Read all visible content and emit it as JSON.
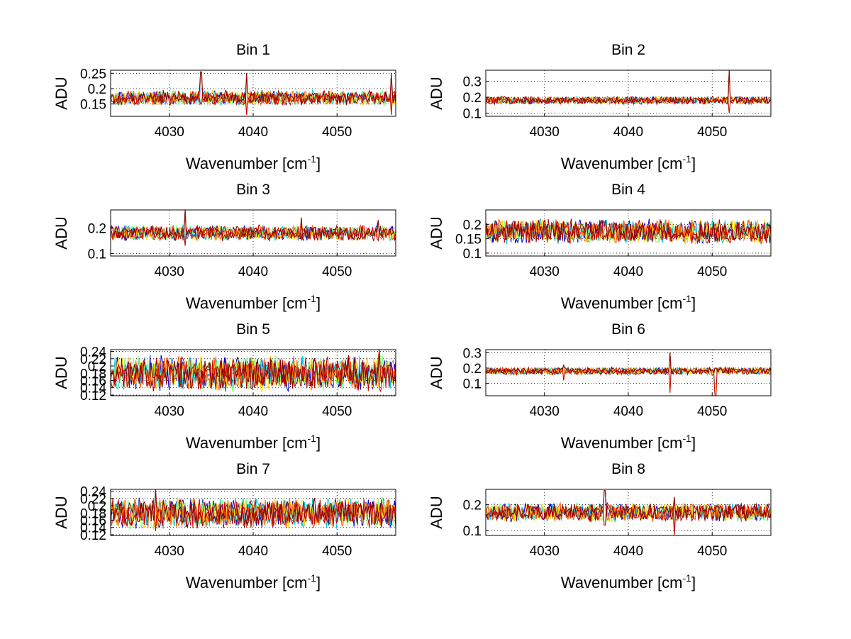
{
  "chart_data": [
    {
      "type": "line",
      "title": "Bin 1",
      "xlabel": "Wavenumber [cm",
      "xlabel_sup": "-1",
      "xlabel_end": "]",
      "ylabel": "ADU",
      "xlim": [
        4023,
        4057
      ],
      "ylim": [
        0.11,
        0.26
      ],
      "xticks": [
        4030,
        4040,
        4050
      ],
      "xtick_labels": [
        "4030",
        "4040",
        "4050"
      ],
      "yticks": [
        0.15,
        0.2,
        0.25
      ],
      "ytick_labels": [
        "0.15",
        "0.2",
        "0.25"
      ],
      "grid": "dotted",
      "series_count": 6,
      "baseline": 0.17,
      "noise_amplitude": 0.02,
      "spikes": [
        {
          "x": 4033.8,
          "up": 0.255,
          "down": 0.15
        },
        {
          "x": 4039.2,
          "up": 0.25,
          "down": 0.115
        },
        {
          "x": 4056.5,
          "up": 0.25,
          "down": 0.115
        }
      ]
    },
    {
      "type": "line",
      "title": "Bin 2",
      "xlabel": "Wavenumber [cm",
      "xlabel_sup": "-1",
      "xlabel_end": "]",
      "ylabel": "ADU",
      "xlim": [
        4023,
        4057
      ],
      "ylim": [
        0.08,
        0.37
      ],
      "xticks": [
        4030,
        4040,
        4050
      ],
      "xtick_labels": [
        "4030",
        "4040",
        "4050"
      ],
      "yticks": [
        0.1,
        0.2,
        0.3
      ],
      "ytick_labels": [
        "0.1",
        "0.2",
        "0.3"
      ],
      "grid": "dotted",
      "series_count": 6,
      "baseline": 0.18,
      "noise_amplitude": 0.02,
      "spikes": [
        {
          "x": 4052.0,
          "up": 0.37,
          "down": 0.1
        }
      ]
    },
    {
      "type": "line",
      "title": "Bin 3",
      "xlabel": "Wavenumber [cm",
      "xlabel_sup": "-1",
      "xlabel_end": "]",
      "ylabel": "ADU",
      "xlim": [
        4023,
        4057
      ],
      "ylim": [
        0.09,
        0.27
      ],
      "xticks": [
        4030,
        4040,
        4050
      ],
      "xtick_labels": [
        "4030",
        "4040",
        "4050"
      ],
      "yticks": [
        0.1,
        0.2
      ],
      "ytick_labels": [
        "0.1",
        "0.2"
      ],
      "grid": "dotted",
      "series_count": 6,
      "baseline": 0.18,
      "noise_amplitude": 0.025,
      "spikes": [
        {
          "x": 4031.9,
          "up": 0.27,
          "down": 0.13
        },
        {
          "x": 4045.8,
          "up": 0.24,
          "down": 0.15
        },
        {
          "x": 4054.9,
          "up": 0.23,
          "down": 0.15
        }
      ]
    },
    {
      "type": "line",
      "title": "Bin 4",
      "xlabel": "Wavenumber [cm",
      "xlabel_sup": "-1",
      "xlabel_end": "]",
      "ylabel": "ADU",
      "xlim": [
        4023,
        4057
      ],
      "ylim": [
        0.09,
        0.25
      ],
      "xticks": [
        4030,
        4040,
        4050
      ],
      "xtick_labels": [
        "4030",
        "4040",
        "4050"
      ],
      "yticks": [
        0.1,
        0.15,
        0.2
      ],
      "ytick_labels": [
        "0.1",
        "0.15",
        "0.2"
      ],
      "grid": "dotted",
      "series_count": 6,
      "baseline": 0.175,
      "noise_amplitude": 0.035,
      "spikes": []
    },
    {
      "type": "line",
      "title": "Bin 5",
      "xlabel": "Wavenumber [cm",
      "xlabel_sup": "-1",
      "xlabel_end": "]",
      "ylabel": "ADU",
      "xlim": [
        4023,
        4057
      ],
      "ylim": [
        0.118,
        0.245
      ],
      "xticks": [
        4030,
        4040,
        4050
      ],
      "xtick_labels": [
        "4030",
        "4040",
        "4050"
      ],
      "yticks": [
        0.12,
        0.14,
        0.16,
        0.18,
        0.2,
        0.22,
        0.24
      ],
      "ytick_labels": [
        "0.12",
        "0.14",
        "0.16",
        "0.18",
        "0.2",
        "0.22",
        "0.24"
      ],
      "grid": "dotted",
      "series_count": 6,
      "baseline": 0.18,
      "noise_amplitude": 0.04,
      "spikes": [
        {
          "x": 4055.0,
          "up": 0.245,
          "down": 0.14
        }
      ]
    },
    {
      "type": "line",
      "title": "Bin 6",
      "xlabel": "Wavenumber [cm",
      "xlabel_sup": "-1",
      "xlabel_end": "]",
      "ylabel": "ADU",
      "xlim": [
        4023,
        4057
      ],
      "ylim": [
        0.02,
        0.32
      ],
      "xticks": [
        4030,
        4040,
        4050
      ],
      "xtick_labels": [
        "4030",
        "4040",
        "4050"
      ],
      "yticks": [
        0.1,
        0.2,
        0.3
      ],
      "ytick_labels": [
        "0.1",
        "0.2",
        "0.3"
      ],
      "grid": "dotted",
      "series_count": 6,
      "baseline": 0.18,
      "noise_amplitude": 0.02,
      "spikes": [
        {
          "x": 4032.3,
          "up": 0.22,
          "down": 0.12
        },
        {
          "x": 4045.0,
          "up": 0.3,
          "down": 0.04
        },
        {
          "x": 4050.4,
          "up": 0.2,
          "down": 0.02
        }
      ]
    },
    {
      "type": "line",
      "title": "Bin 7",
      "xlabel": "Wavenumber [cm",
      "xlabel_sup": "-1",
      "xlabel_end": "]",
      "ylabel": "ADU",
      "xlim": [
        4023,
        4057
      ],
      "ylim": [
        0.118,
        0.245
      ],
      "xticks": [
        4030,
        4040,
        4050
      ],
      "xtick_labels": [
        "4030",
        "4040",
        "4050"
      ],
      "yticks": [
        0.12,
        0.14,
        0.16,
        0.18,
        0.2,
        0.22,
        0.24
      ],
      "ytick_labels": [
        "0.12",
        "0.14",
        "0.16",
        "0.18",
        "0.2",
        "0.22",
        "0.24"
      ],
      "grid": "dotted",
      "series_count": 6,
      "baseline": 0.18,
      "noise_amplitude": 0.035,
      "spikes": [
        {
          "x": 4028.4,
          "up": 0.245,
          "down": 0.13
        }
      ]
    },
    {
      "type": "line",
      "title": "Bin 8",
      "xlabel": "Wavenumber [cm",
      "xlabel_sup": "-1",
      "xlabel_end": "]",
      "ylabel": "ADU",
      "xlim": [
        4023,
        4057
      ],
      "ylim": [
        0.08,
        0.26
      ],
      "xticks": [
        4030,
        4040,
        4050
      ],
      "xtick_labels": [
        "4030",
        "4040",
        "4050"
      ],
      "yticks": [
        0.1,
        0.2
      ],
      "ytick_labels": [
        "0.1",
        "0.2"
      ],
      "grid": "dotted",
      "series_count": 6,
      "baseline": 0.17,
      "noise_amplitude": 0.03,
      "spikes": [
        {
          "x": 4037.2,
          "up": 0.255,
          "down": 0.12
        },
        {
          "x": 4045.5,
          "up": 0.23,
          "down": 0.08
        }
      ]
    }
  ],
  "series_colors": [
    "#0000c8",
    "#00c8e6",
    "#7fff7f",
    "#ffd700",
    "#ff5a00",
    "#c80000",
    "#8b0000"
  ]
}
